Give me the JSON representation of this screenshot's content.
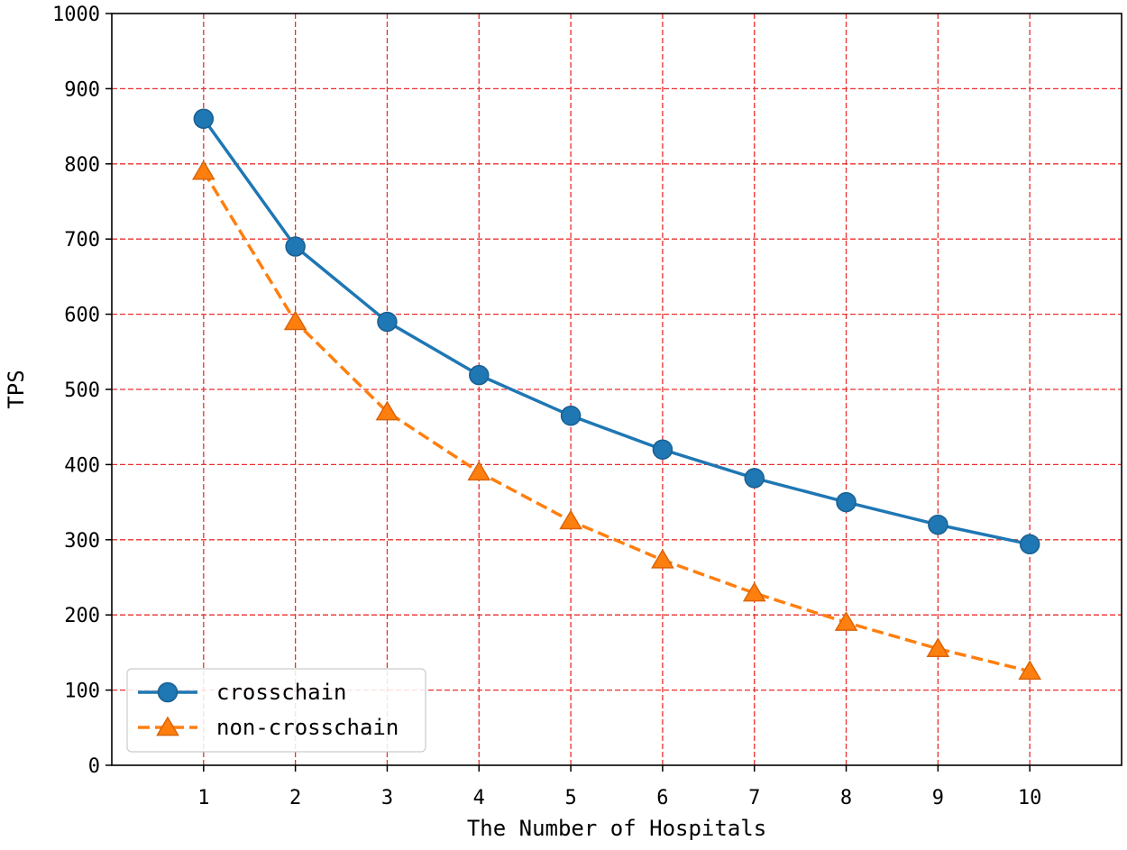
{
  "chart_data": {
    "type": "line",
    "title": "",
    "xlabel": "The Number of Hospitals",
    "ylabel": "TPS",
    "x": [
      1,
      2,
      3,
      4,
      5,
      6,
      7,
      8,
      9,
      10
    ],
    "xlim": [
      0,
      11
    ],
    "ylim": [
      0,
      1000
    ],
    "xticks": [
      "1",
      "2",
      "3",
      "4",
      "5",
      "6",
      "7",
      "8",
      "9",
      "10"
    ],
    "yticks": [
      "0",
      "100",
      "200",
      "300",
      "400",
      "500",
      "600",
      "700",
      "800",
      "900",
      "1000"
    ],
    "grid": true,
    "grid_color": "#e8302f",
    "legend_position": "lower-left",
    "series": [
      {
        "name": "crosschain",
        "color": "#1f77b4",
        "marker": "circle",
        "linestyle": "solid",
        "values": [
          860,
          690,
          590,
          519,
          465,
          420,
          382,
          350,
          320,
          294
        ]
      },
      {
        "name": "non-crosschain",
        "color": "#ff7f0e",
        "marker": "triangle",
        "linestyle": "dashed",
        "values": [
          790,
          590,
          470,
          390,
          325,
          273,
          229,
          190,
          155,
          125
        ]
      }
    ]
  }
}
